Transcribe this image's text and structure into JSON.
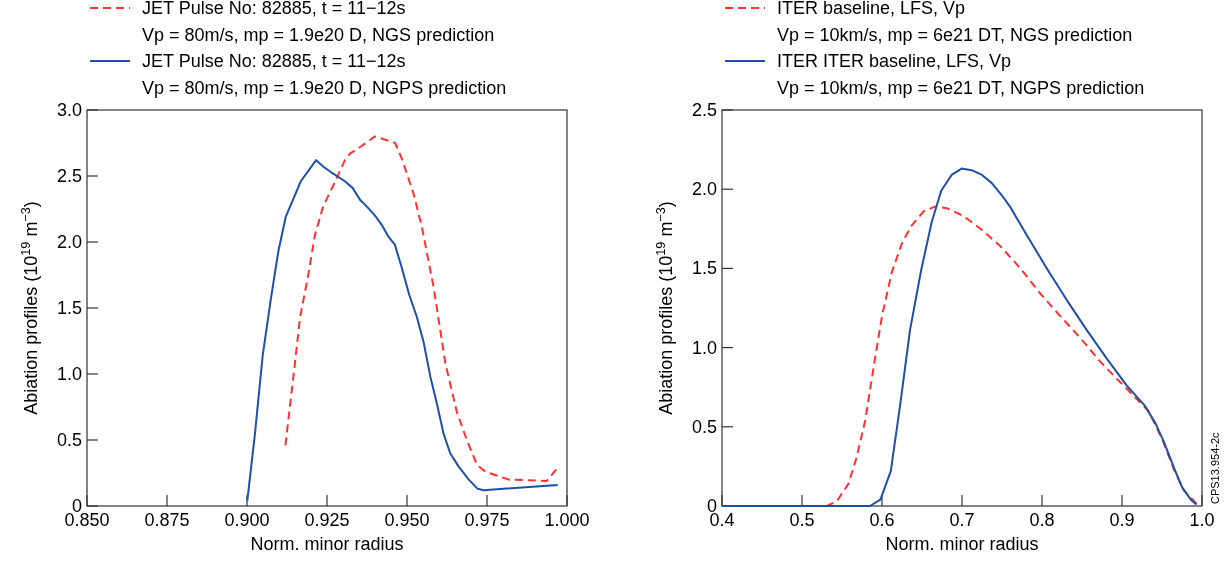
{
  "chart_data": [
    {
      "type": "line",
      "xlabel": "Norm. minor radius",
      "ylabel": "Abiation profiles (10$^{19}$ m$^{−3}$)",
      "legend": "top left",
      "xlim": [
        0.85,
        1.0
      ],
      "ylim": [
        0,
        3.0
      ],
      "xticks": [
        {
          "value": 0.85,
          "label": "0.850"
        },
        {
          "value": 0.875,
          "label": "0.875"
        },
        {
          "value": 0.9,
          "label": "0.900"
        },
        {
          "value": 0.925,
          "label": "0.925"
        },
        {
          "value": 0.95,
          "label": "0.950"
        },
        {
          "value": 0.975,
          "label": "0.975"
        },
        {
          "value": 1.0,
          "label": "1.000"
        }
      ],
      "yticks": [
        0,
        0.5,
        {
          "value": 1,
          "label": "1.0"
        },
        1.5,
        {
          "value": 2,
          "label": "2.0"
        },
        2.5,
        {
          "value": 3,
          "label": "3.0"
        }
      ],
      "series": [
        {
          "name": "JET Pulse No: 82885, t = 11−12s\nVp = 80m/s, mp = 1.9e20 D, NGS prediction",
          "color": "#ff3030",
          "line_style": "dashed",
          "x": [
            0.912,
            0.9145,
            0.9166,
            0.9192,
            0.9212,
            0.9238,
            0.927,
            0.9306,
            0.9322,
            0.9348,
            0.94,
            0.9463,
            0.9484,
            0.952,
            0.9546,
            0.9583,
            0.962,
            0.9656,
            0.9687,
            0.9719,
            0.9745,
            0.9818,
            0.9937,
            0.9974
          ],
          "values": [
            0.46,
            0.98,
            1.43,
            1.76,
            2.05,
            2.27,
            2.43,
            2.62,
            2.67,
            2.71,
            2.8,
            2.75,
            2.63,
            2.37,
            2.12,
            1.66,
            1.08,
            0.71,
            0.5,
            0.31,
            0.26,
            0.2,
            0.19,
            0.3
          ]
        },
        {
          "name": "JET Pulse No: 82885, t = 11−12s\nVp = 80m/s, mp = 1.9e20 D, NGPS prediction",
          "color": "#1f4fa8",
          "line_style": "solid",
          "x": [
            0.9001,
            0.9025,
            0.9049,
            0.9074,
            0.9098,
            0.9121,
            0.9168,
            0.9216,
            0.9239,
            0.9262,
            0.9306,
            0.933,
            0.9353,
            0.9374,
            0.94,
            0.9421,
            0.9442,
            0.9462,
            0.9483,
            0.9507,
            0.9531,
            0.9552,
            0.9573,
            0.9593,
            0.9614,
            0.9635,
            0.9661,
            0.9693,
            0.9721,
            0.974,
            0.9971
          ],
          "values": [
            0.04,
            0.55,
            1.14,
            1.56,
            1.93,
            2.19,
            2.46,
            2.62,
            2.57,
            2.53,
            2.46,
            2.41,
            2.32,
            2.27,
            2.2,
            2.13,
            2.04,
            1.98,
            1.81,
            1.6,
            1.43,
            1.24,
            0.98,
            0.78,
            0.55,
            0.4,
            0.3,
            0.2,
            0.13,
            0.12,
            0.16
          ]
        }
      ]
    },
    {
      "type": "line",
      "xlabel": "Norm. minor radius",
      "ylabel": "Abiation profiles (10$^{19}$ m$^{−3}$)",
      "legend": "top left",
      "xlim": [
        0.4,
        1.0
      ],
      "ylim": [
        0,
        2.5
      ],
      "xticks": [
        0.4,
        0.5,
        0.6,
        0.7,
        0.8,
        0.9,
        {
          "value": 1,
          "label": "1.0"
        }
      ],
      "yticks": [
        0,
        0.5,
        {
          "value": 1,
          "label": "1.0"
        },
        1.5,
        {
          "value": 2,
          "label": "2.0"
        },
        2.5
      ],
      "annotations": [
        "CPS13.954-2c"
      ],
      "series": [
        {
          "name": "ITER baseline, LFS, Vp\nVp = 10km/s, mp = 6e21 DT, NGS prediction",
          "color": "#ff3030",
          "line_style": "dashed",
          "x": [
            0.4,
            0.531,
            0.5435,
            0.558,
            0.5685,
            0.579,
            0.589,
            0.6,
            0.6125,
            0.625,
            0.637,
            0.652,
            0.666,
            0.681,
            0.702,
            0.723,
            0.748,
            0.773,
            0.798,
            0.819,
            0.848,
            0.873,
            0.902,
            0.933,
            0.942,
            0.952,
            0.965,
            0.977,
            0.994
          ],
          "values": [
            0,
            0,
            0.03,
            0.14,
            0.31,
            0.54,
            0.86,
            1.2,
            1.48,
            1.66,
            1.77,
            1.86,
            1.89,
            1.88,
            1.83,
            1.75,
            1.64,
            1.5,
            1.34,
            1.22,
            1.06,
            0.91,
            0.76,
            0.6,
            0.51,
            0.4,
            0.23,
            0.1,
            0.01
          ]
        },
        {
          "name": "ITER ITER baseline, LFS, Vp\nVp = 10km/s, mp = 6e21 DT, NGPS prediction",
          "color": "#1f4fa8",
          "line_style": "solid",
          "x": [
            0.4,
            0.585,
            0.598,
            0.611,
            0.6225,
            0.635,
            0.649,
            0.662,
            0.674,
            0.687,
            0.6995,
            0.712,
            0.725,
            0.737,
            0.75,
            0.76,
            0.781,
            0.806,
            0.831,
            0.856,
            0.881,
            0.906,
            0.929,
            0.942,
            0.952,
            0.965,
            0.975,
            0.986,
            0.993
          ],
          "values": [
            0,
            0,
            0.04,
            0.22,
            0.63,
            1.11,
            1.49,
            1.79,
            1.99,
            2.09,
            2.13,
            2.12,
            2.09,
            2.04,
            1.96,
            1.89,
            1.71,
            1.5,
            1.3,
            1.11,
            0.93,
            0.76,
            0.63,
            0.52,
            0.41,
            0.24,
            0.12,
            0.04,
            0.01
          ]
        }
      ]
    }
  ]
}
